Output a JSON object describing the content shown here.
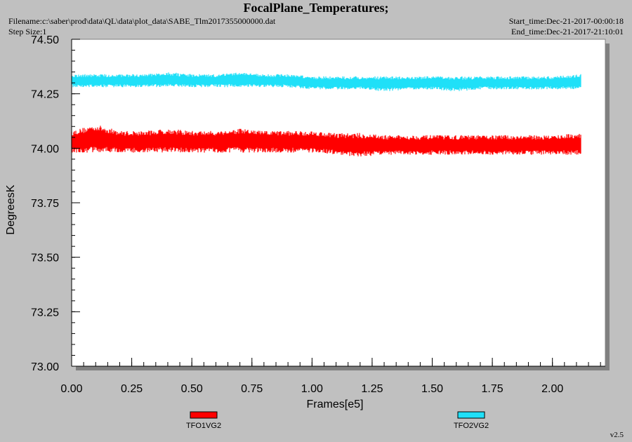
{
  "header": {
    "title": "FocalPlane_Temperatures;",
    "filename": "Filename:c:\\saber\\prod\\data\\QL\\data\\plot_data\\SABE_Tlm2017355000000.dat",
    "step_size": "Step Size:1",
    "start_time": "Start_time:Dec-21-2017-00:00:18",
    "end_time": "End_time:Dec-21-2017-21:10:01"
  },
  "footer": {
    "version": "v2.5"
  },
  "colors": {
    "background": "#c0c0c0",
    "plot_area": "#ffffff",
    "series1": "#ff0000",
    "series2": "#1fe0f8"
  },
  "chart_data": {
    "type": "line",
    "title": "FocalPlane_Temperatures;",
    "xlabel": "Frames[e5]",
    "ylabel": "DegreesK",
    "xlim": [
      0.0,
      2.22
    ],
    "ylim": [
      73.0,
      74.5
    ],
    "xticks": [
      "0.00",
      "0.25",
      "0.50",
      "0.75",
      "1.00",
      "1.25",
      "1.50",
      "1.75",
      "2.00"
    ],
    "yticks": [
      "73.00",
      "73.25",
      "73.50",
      "73.75",
      "74.00",
      "74.25",
      "74.50"
    ],
    "grid": false,
    "legend_position": "bottom",
    "series": [
      {
        "name": "TFO1VG2",
        "color": "#ff0000",
        "x": [
          0.0,
          0.1,
          0.2,
          0.3,
          0.4,
          0.5,
          0.6,
          0.7,
          0.8,
          0.9,
          1.0,
          1.1,
          1.2,
          1.3,
          1.4,
          1.5,
          1.6,
          1.7,
          1.8,
          1.9,
          2.0,
          2.12
        ],
        "y_min": [
          73.98,
          73.98,
          73.98,
          73.98,
          73.98,
          73.98,
          73.98,
          73.98,
          73.98,
          73.98,
          73.98,
          73.97,
          73.96,
          73.97,
          73.97,
          73.97,
          73.97,
          73.97,
          73.97,
          73.97,
          73.97,
          73.97
        ],
        "y_max": [
          74.08,
          74.11,
          74.08,
          74.08,
          74.09,
          74.08,
          74.08,
          74.09,
          74.08,
          74.08,
          74.08,
          74.07,
          74.07,
          74.06,
          74.06,
          74.06,
          74.06,
          74.06,
          74.06,
          74.06,
          74.06,
          74.07
        ]
      },
      {
        "name": "TFO2VG2",
        "color": "#1fe0f8",
        "x": [
          0.0,
          0.1,
          0.2,
          0.3,
          0.4,
          0.5,
          0.6,
          0.7,
          0.8,
          0.9,
          1.0,
          1.1,
          1.2,
          1.3,
          1.4,
          1.5,
          1.6,
          1.7,
          1.8,
          1.9,
          2.0,
          2.12
        ],
        "y_min": [
          74.28,
          74.28,
          74.28,
          74.28,
          74.28,
          74.28,
          74.28,
          74.28,
          74.28,
          74.28,
          74.27,
          74.27,
          74.27,
          74.26,
          74.27,
          74.27,
          74.26,
          74.27,
          74.27,
          74.27,
          74.27,
          74.27
        ],
        "y_max": [
          74.34,
          74.34,
          74.34,
          74.34,
          74.35,
          74.34,
          74.34,
          74.35,
          74.34,
          74.34,
          74.33,
          74.33,
          74.33,
          74.33,
          74.33,
          74.33,
          74.33,
          74.33,
          74.33,
          74.33,
          74.33,
          74.34
        ]
      }
    ]
  }
}
